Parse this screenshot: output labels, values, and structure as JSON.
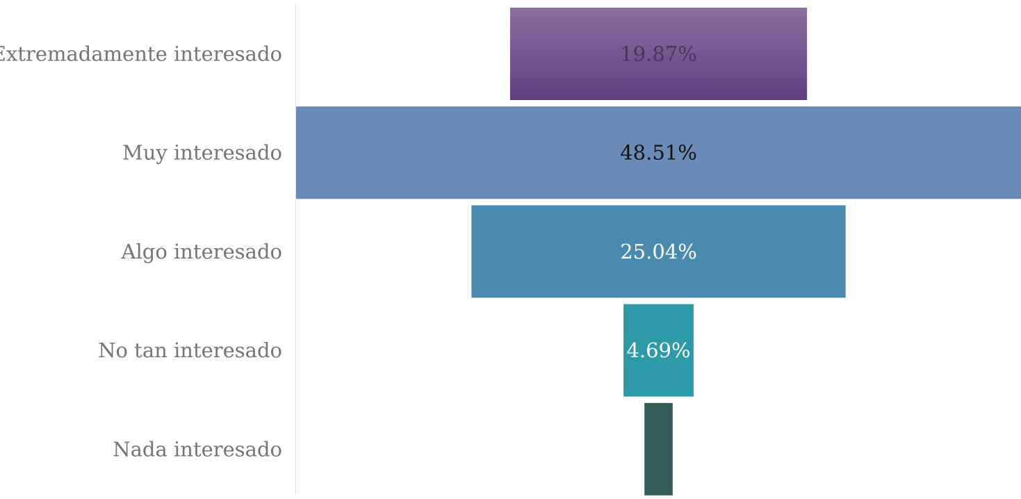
{
  "chart_data": {
    "type": "bar",
    "subtype": "funnel",
    "orientation": "horizontal",
    "categories": [
      "Extremadamente interesado",
      "Muy interesado",
      "Algo interesado",
      "No tan interesado",
      "Nada interesado"
    ],
    "values": [
      19.87,
      48.51,
      25.04,
      4.69,
      1.89
    ],
    "data_labels": [
      "19.87%",
      "48.51%",
      "25.04%",
      "4.69%",
      ""
    ],
    "colors": [
      "#6a4d8c",
      "#6a8bb8",
      "#4a8aae",
      "#2f9aa7",
      "#325d58"
    ],
    "label_colors": [
      "#4a3560",
      "#111111",
      "#ffffff",
      "#ffffff",
      "#ffffff"
    ],
    "title": "",
    "xlabel": "",
    "ylabel": "",
    "grid": false,
    "legend": "none"
  }
}
